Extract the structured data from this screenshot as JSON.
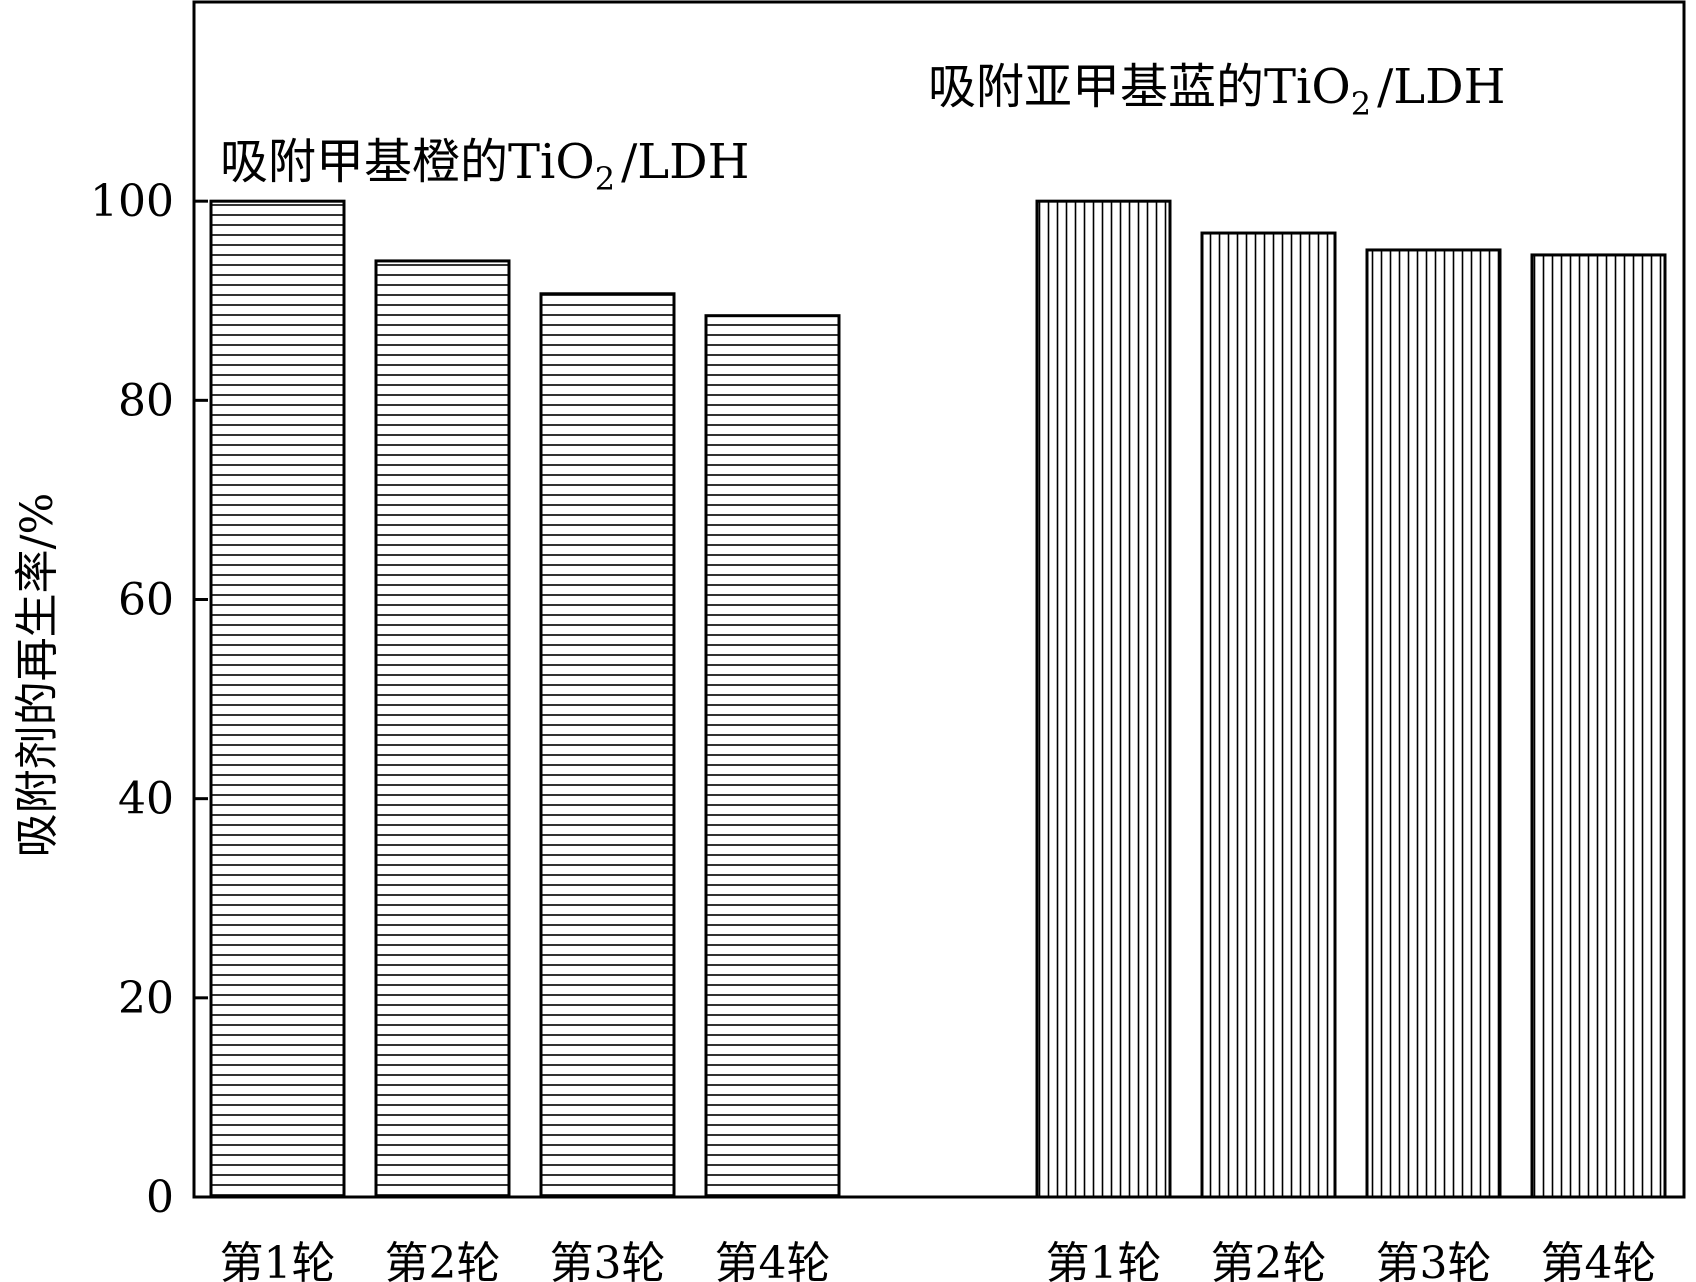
{
  "chart_data": {
    "type": "bar",
    "categories": [
      "第1轮",
      "第2轮",
      "第3轮",
      "第4轮"
    ],
    "series": [
      {
        "values": [
          100,
          94,
          90.7,
          88.5
        ],
        "pattern": "horizontal-lines",
        "annotation": {
          "prefix": "吸附甲基橙的TiO",
          "sub": "2",
          "suffix": "/LDH"
        }
      },
      {
        "values": [
          100,
          96.8,
          95.1,
          94.6
        ],
        "pattern": "vertical-lines",
        "annotation": {
          "prefix": "吸附亚甲基蓝的TiO",
          "sub": "2",
          "suffix": "/LDH"
        }
      }
    ],
    "ylabel": "吸附剂的再生率/%",
    "xlabel": "",
    "ylim": [
      0,
      120
    ],
    "yticks": [
      0,
      20,
      40,
      60,
      80,
      100
    ],
    "grid": false,
    "colors": {
      "stroke": "#000000",
      "fill": "#ffffff"
    }
  }
}
